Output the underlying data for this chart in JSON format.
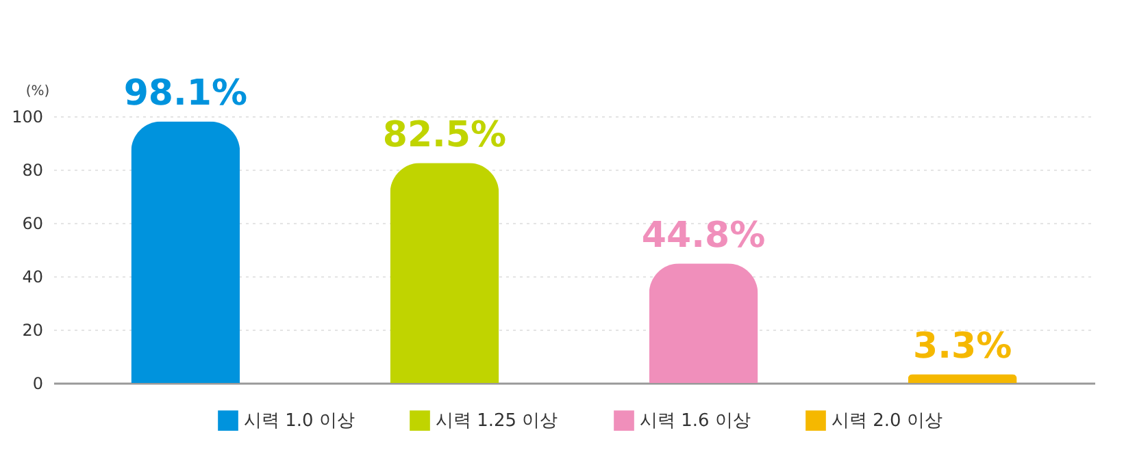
{
  "chart_data": {
    "type": "bar",
    "ylabel": "(%)",
    "categories": [
      null,
      null,
      null,
      null
    ],
    "series": [
      {
        "name": "시력 1.0 이상",
        "color": "#0093dd",
        "values": [
          98.1,
          null,
          null,
          null
        ],
        "value_labels": [
          "98.1%",
          null,
          null,
          null
        ]
      },
      {
        "name": "시력 1.25 이상",
        "color": "#c0d400",
        "values": [
          null,
          82.5,
          null,
          null
        ],
        "value_labels": [
          null,
          "82.5%",
          null,
          null
        ]
      },
      {
        "name": "시력 1.6 이상",
        "color": "#f08fbb",
        "values": [
          null,
          null,
          44.8,
          null
        ],
        "value_labels": [
          null,
          null,
          "44.8%",
          null
        ]
      },
      {
        "name": "시력 2.0 이상",
        "color": "#f5b800",
        "values": [
          null,
          null,
          null,
          3.3
        ],
        "value_labels": [
          null,
          null,
          null,
          "3.3%"
        ]
      }
    ],
    "stacked": true,
    "ylim": [
      0,
      100
    ],
    "yticks": [
      0,
      20,
      40,
      60,
      80,
      100
    ],
    "grid": "y",
    "legend": "bottom",
    "tick_labels": "y"
  }
}
